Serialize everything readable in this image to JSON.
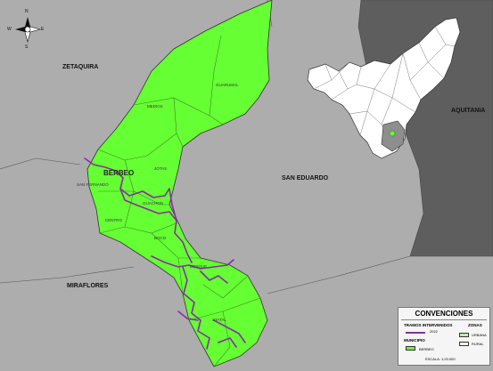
{
  "neighbors": {
    "zetaquira": "ZETAQUIRA",
    "san_eduardo": "SAN EDUARDO",
    "miraflores": "MIRAFLORES",
    "aquitania": "AQUITANIA"
  },
  "town": "BERBEO",
  "veredas": [
    "MEDIOS",
    "GUARUMAL",
    "JOTAS",
    "SAN FERNANDO",
    "GUACHON",
    "CENTRO",
    "BOCO",
    "BOSQUE",
    "STATAL"
  ],
  "compass": {
    "n": "N",
    "s": "S",
    "e": "E",
    "w": "W"
  },
  "legend": {
    "title": "CONVENCIONES",
    "tramos_title": "TRAMOS INTERVENIDOS",
    "tramos_year": "2022",
    "zonas_title": "ZONAS",
    "municipio_title": "MUNICIPIO",
    "municipio_item": "BERBEO",
    "zona_urbana": "URBANA",
    "zona_rural": "RURAL",
    "escala": "ESCALA: 1:20.000"
  },
  "colors": {
    "municipio": "#66ff33",
    "surround": "#adadad",
    "dark_region": "#5e5e5e",
    "roads": "#8b2ba8",
    "boundary": "#444444"
  }
}
